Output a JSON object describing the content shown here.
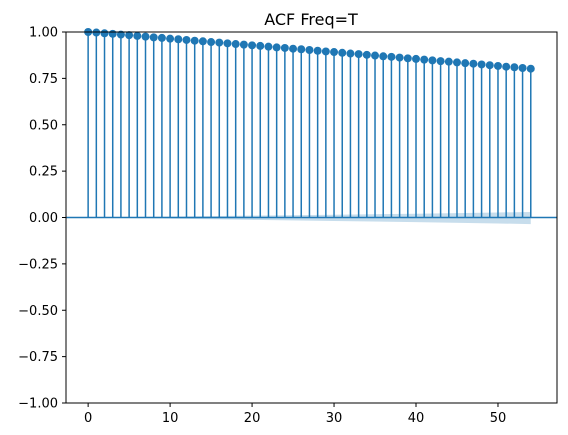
{
  "chart_data": {
    "type": "stem",
    "title": "ACF Freq=T",
    "xlabel": "",
    "ylabel": "",
    "xlim": [
      -2.7,
      57.2
    ],
    "ylim": [
      -1.0,
      1.0
    ],
    "x_ticks": [
      0,
      10,
      20,
      30,
      40,
      50
    ],
    "y_ticks": [
      -1.0,
      -0.75,
      -0.5,
      -0.25,
      0.0,
      0.25,
      0.5,
      0.75,
      1.0
    ],
    "x_tick_labels": [
      "0",
      "10",
      "20",
      "30",
      "40",
      "50"
    ],
    "y_tick_labels": [
      "−1.00",
      "−0.75",
      "−0.50",
      "−0.25",
      "0.00",
      "0.25",
      "0.50",
      "0.75",
      "1.00"
    ],
    "lags": [
      0,
      1,
      2,
      3,
      4,
      5,
      6,
      7,
      8,
      9,
      10,
      11,
      12,
      13,
      14,
      15,
      16,
      17,
      18,
      19,
      20,
      21,
      22,
      23,
      24,
      25,
      26,
      27,
      28,
      29,
      30,
      31,
      32,
      33,
      34,
      35,
      36,
      37,
      38,
      39,
      40,
      41,
      42,
      43,
      44,
      45,
      46,
      47,
      48,
      49,
      50,
      51,
      52,
      53,
      54
    ],
    "acf": [
      1.0,
      0.997,
      0.993,
      0.99,
      0.986,
      0.983,
      0.979,
      0.975,
      0.971,
      0.968,
      0.964,
      0.961,
      0.957,
      0.953,
      0.95,
      0.946,
      0.943,
      0.939,
      0.935,
      0.932,
      0.928,
      0.925,
      0.921,
      0.917,
      0.914,
      0.91,
      0.907,
      0.903,
      0.899,
      0.895,
      0.892,
      0.888,
      0.884,
      0.881,
      0.877,
      0.873,
      0.869,
      0.866,
      0.862,
      0.858,
      0.855,
      0.851,
      0.847,
      0.843,
      0.84,
      0.836,
      0.832,
      0.829,
      0.825,
      0.821,
      0.817,
      0.813,
      0.81,
      0.806,
      0.802
    ],
    "confidence_band": {
      "lags": [
        0,
        5,
        10,
        20,
        30,
        40,
        50,
        54
      ],
      "upper": [
        0.0,
        0.003,
        0.005,
        0.01,
        0.015,
        0.02,
        0.027,
        0.03
      ],
      "lower": [
        0.0,
        -0.003,
        -0.006,
        -0.013,
        -0.019,
        -0.025,
        -0.032,
        -0.036
      ]
    },
    "grid": false,
    "legend": "none",
    "colors": {
      "stem": "#1f77b4",
      "band": "#1f77b4",
      "zero_line": "#1f77b4"
    }
  }
}
